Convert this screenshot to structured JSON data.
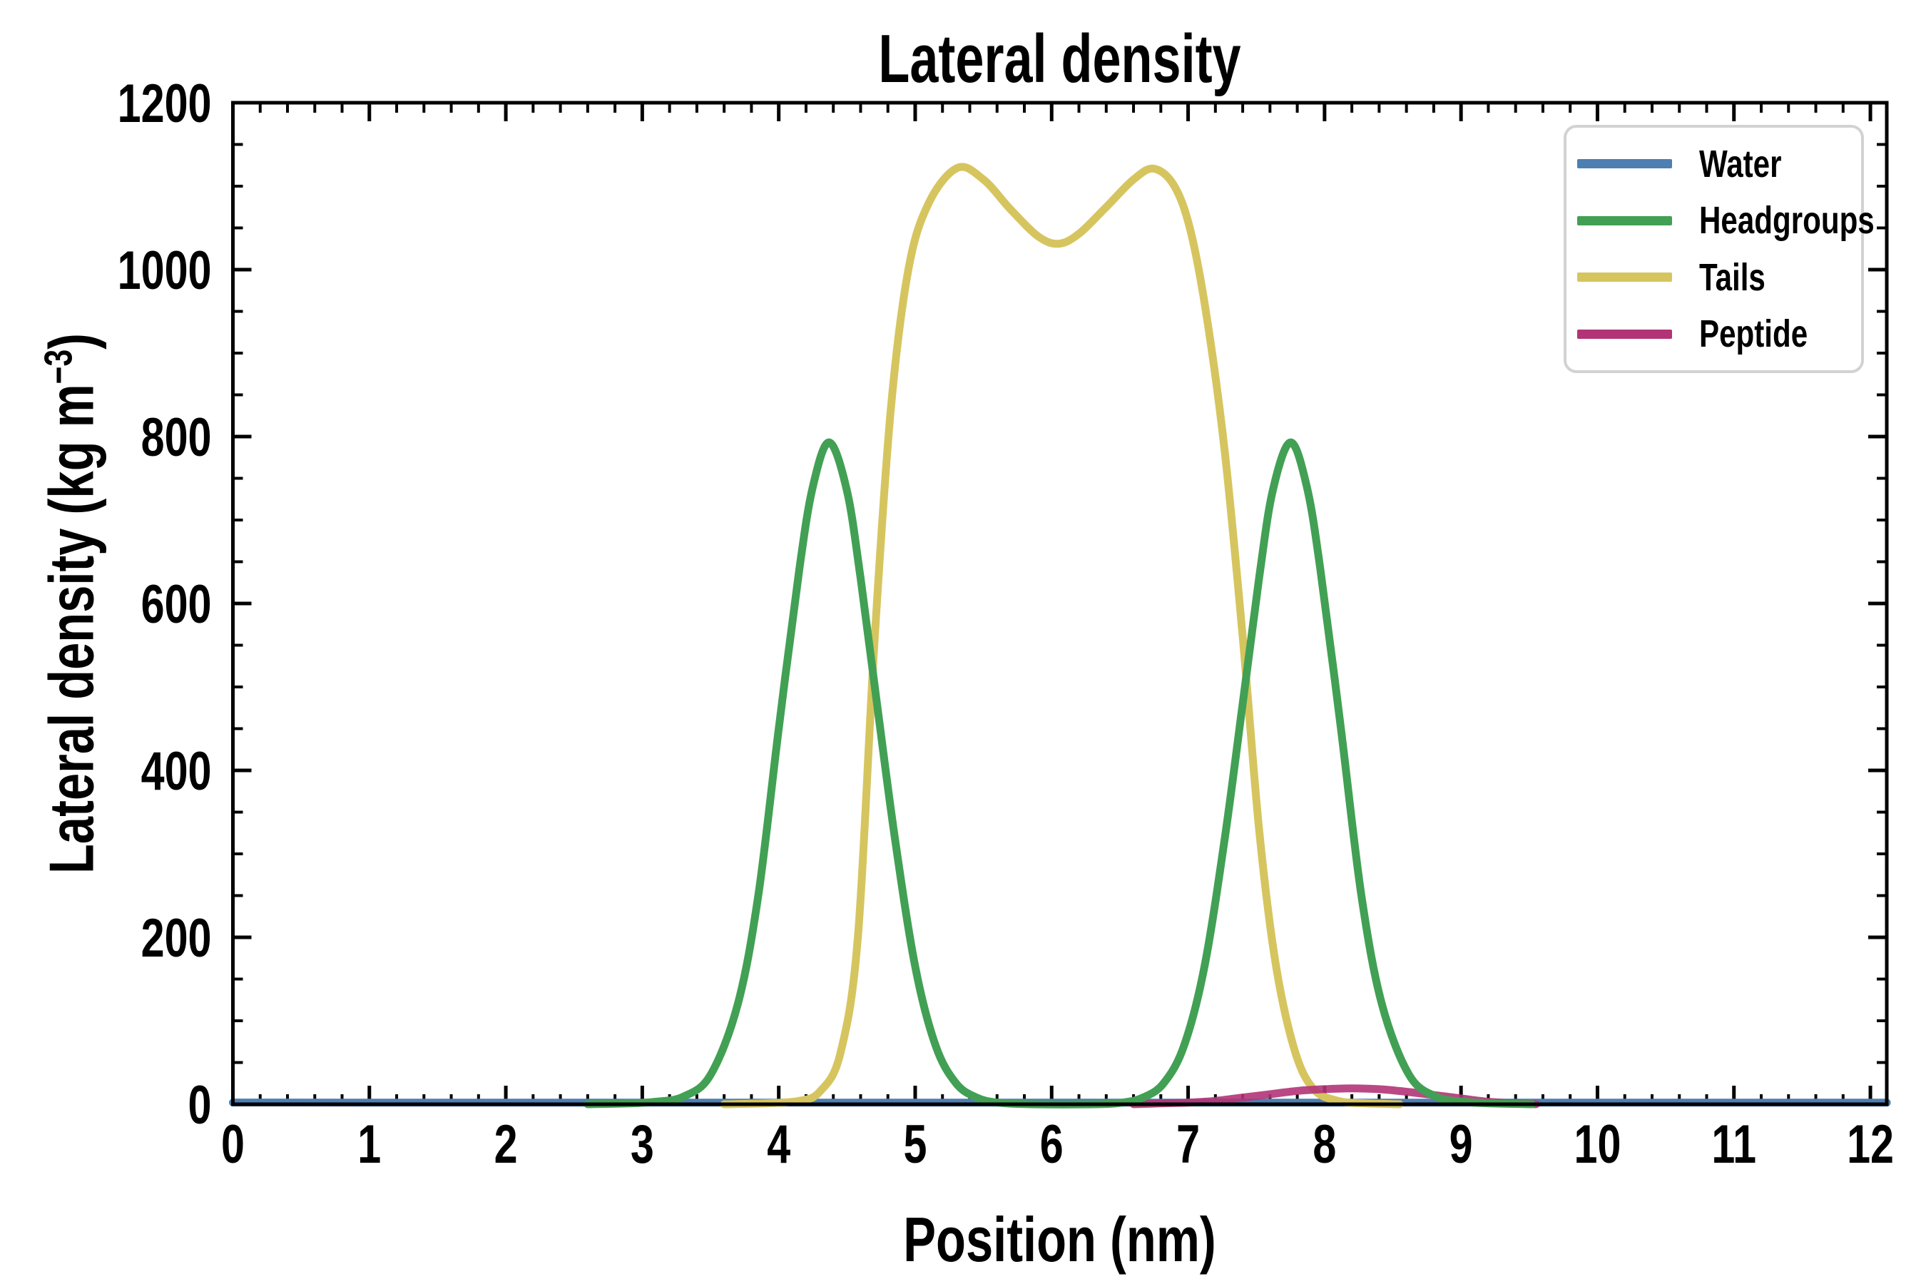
{
  "chart_data": {
    "type": "line",
    "title": "Lateral density",
    "xlabel": "Position (nm)",
    "ylabel": "Lateral density (kg m⁻³)",
    "ylabel_parts": [
      "Lateral density (kg m",
      "−3",
      ")"
    ],
    "xlim": [
      0,
      12.12
    ],
    "ylim": [
      0,
      1200
    ],
    "x_major_step": 1,
    "x_minor_step": 0.2,
    "y_major_step": 200,
    "y_minor_step": 50,
    "x_tick_labels": [
      "0",
      "1",
      "2",
      "3",
      "4",
      "5",
      "6",
      "7",
      "8",
      "9",
      "10",
      "11",
      "12"
    ],
    "y_tick_labels": [
      "0",
      "200",
      "400",
      "600",
      "800",
      "1000",
      "1200"
    ],
    "grid": false,
    "legend_position": "upper right",
    "draw_order": [
      "Water",
      "Tails",
      "Peptide",
      "Headgroups"
    ],
    "series": [
      {
        "name": "Water",
        "color": "#4d7fb2",
        "points": [
          [
            0,
            2
          ],
          [
            1.5,
            2
          ],
          [
            3,
            2
          ],
          [
            4.5,
            2
          ],
          [
            6,
            2
          ],
          [
            7.5,
            2
          ],
          [
            9,
            2
          ],
          [
            10.5,
            2
          ],
          [
            12.12,
            2
          ]
        ]
      },
      {
        "name": "Headgroups",
        "color": "#42a054",
        "points": [
          [
            2.6,
            0
          ],
          [
            2.9,
            1
          ],
          [
            3.1,
            3
          ],
          [
            3.3,
            9
          ],
          [
            3.5,
            35
          ],
          [
            3.7,
            120
          ],
          [
            3.85,
            250
          ],
          [
            4.0,
            450
          ],
          [
            4.15,
            640
          ],
          [
            4.25,
            740
          ],
          [
            4.37,
            793
          ],
          [
            4.5,
            735
          ],
          [
            4.6,
            630
          ],
          [
            4.72,
            480
          ],
          [
            4.85,
            320
          ],
          [
            5.0,
            165
          ],
          [
            5.15,
            70
          ],
          [
            5.3,
            25
          ],
          [
            5.45,
            8
          ],
          [
            5.6,
            2
          ],
          [
            5.85,
            0
          ],
          [
            6.32,
            0
          ],
          [
            6.52,
            2
          ],
          [
            6.67,
            8
          ],
          [
            6.82,
            25
          ],
          [
            6.97,
            70
          ],
          [
            7.12,
            165
          ],
          [
            7.27,
            320
          ],
          [
            7.4,
            480
          ],
          [
            7.52,
            630
          ],
          [
            7.62,
            735
          ],
          [
            7.75,
            793
          ],
          [
            7.87,
            740
          ],
          [
            7.97,
            640
          ],
          [
            8.12,
            450
          ],
          [
            8.27,
            250
          ],
          [
            8.42,
            120
          ],
          [
            8.62,
            35
          ],
          [
            8.82,
            9
          ],
          [
            9.02,
            3
          ],
          [
            9.22,
            1
          ],
          [
            9.52,
            0
          ]
        ]
      },
      {
        "name": "Tails",
        "color": "#d6c55f",
        "points": [
          [
            3.6,
            0
          ],
          [
            3.9,
            1
          ],
          [
            4.15,
            4
          ],
          [
            4.3,
            15
          ],
          [
            4.45,
            60
          ],
          [
            4.58,
            200
          ],
          [
            4.7,
            550
          ],
          [
            4.82,
            830
          ],
          [
            4.95,
            1000
          ],
          [
            5.1,
            1080
          ],
          [
            5.31,
            1122
          ],
          [
            5.5,
            1108
          ],
          [
            5.7,
            1072
          ],
          [
            5.9,
            1040
          ],
          [
            6.05,
            1031
          ],
          [
            6.2,
            1043
          ],
          [
            6.4,
            1075
          ],
          [
            6.6,
            1108
          ],
          [
            6.75,
            1121
          ],
          [
            6.9,
            1100
          ],
          [
            7.02,
            1045
          ],
          [
            7.14,
            940
          ],
          [
            7.27,
            780
          ],
          [
            7.4,
            560
          ],
          [
            7.52,
            330
          ],
          [
            7.64,
            170
          ],
          [
            7.78,
            65
          ],
          [
            7.92,
            18
          ],
          [
            8.1,
            4
          ],
          [
            8.3,
            1
          ],
          [
            8.55,
            0
          ]
        ]
      },
      {
        "name": "Peptide",
        "color": "#b23477",
        "points": [
          [
            6.6,
            0
          ],
          [
            6.8,
            1
          ],
          [
            7.0,
            2
          ],
          [
            7.2,
            4
          ],
          [
            7.4,
            8
          ],
          [
            7.6,
            12
          ],
          [
            7.8,
            16
          ],
          [
            8.0,
            18
          ],
          [
            8.2,
            19
          ],
          [
            8.4,
            18
          ],
          [
            8.6,
            15
          ],
          [
            8.8,
            11
          ],
          [
            9.0,
            7
          ],
          [
            9.2,
            3
          ],
          [
            9.4,
            1
          ],
          [
            9.55,
            0
          ]
        ]
      }
    ]
  }
}
